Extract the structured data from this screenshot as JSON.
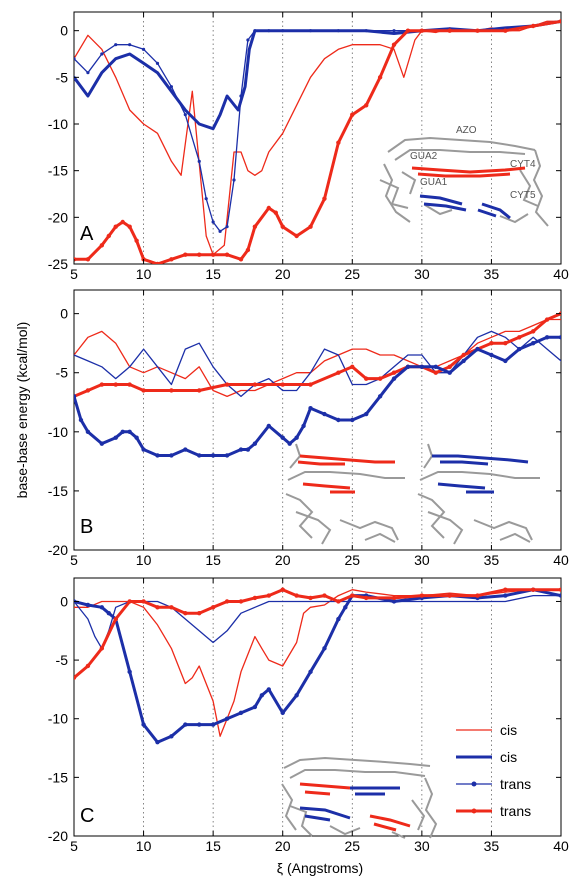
{
  "figure": {
    "ylabel": "base-base energy (kcal/mol)",
    "xlabel": "ξ (Angstroms)"
  },
  "colors": {
    "red": "#ee2a1a",
    "blue": "#1c2fa8",
    "grid": "#666666",
    "molecule": "#9a9a9a"
  },
  "chart_data": [
    {
      "type": "line",
      "panel_label": "A",
      "xlim": [
        5,
        40
      ],
      "ylim": [
        -25,
        2
      ],
      "xticks": [
        5,
        10,
        15,
        20,
        25,
        30,
        35,
        40
      ],
      "yticks": [
        0,
        -5,
        -10,
        -15,
        -20,
        -25
      ],
      "grid": "vertical dotted",
      "inset_labels": [
        "AZO",
        "GUA2",
        "CYT4",
        "GUA1",
        "CYT5"
      ],
      "series": [
        {
          "color": "red",
          "style": "thin",
          "x": [
            5,
            6,
            7,
            8,
            9,
            10,
            11,
            12,
            12.7,
            13.5,
            14.5,
            15,
            15.8,
            16.5,
            17,
            17.5,
            18,
            18.5,
            19,
            20,
            21,
            22,
            23,
            24,
            25,
            26,
            27,
            28,
            28.7,
            29.5,
            30,
            31,
            32,
            33,
            34,
            35,
            36,
            37,
            38,
            39,
            40
          ],
          "y": [
            -3,
            -0.5,
            -2,
            -5,
            -8.5,
            -10,
            -11,
            -14,
            -15.5,
            -6.5,
            -22,
            -24,
            -23,
            -13,
            -13,
            -15,
            -15.5,
            -15,
            -13,
            -11,
            -8,
            -5,
            -3,
            -2,
            -1.5,
            -1.5,
            -1.5,
            -2,
            -5,
            -1,
            0,
            -0.2,
            0.3,
            0,
            0,
            0.3,
            0,
            0,
            0.5,
            1,
            1
          ]
        },
        {
          "color": "blue",
          "style": "thick",
          "x": [
            5,
            6,
            7,
            8,
            9,
            10,
            11,
            12,
            13,
            14,
            15,
            15.5,
            16,
            16.8,
            17.3,
            17.6,
            18,
            19,
            20,
            22,
            24,
            26,
            28,
            30,
            32,
            34,
            36,
            38,
            40
          ],
          "y": [
            -5,
            -7,
            -4.5,
            -3,
            -2.5,
            -3.5,
            -4.5,
            -6.5,
            -8.5,
            -10,
            -10.5,
            -9,
            -7,
            -8.5,
            -6,
            -2,
            0,
            0,
            0,
            0,
            0,
            0,
            -0.3,
            0,
            0.2,
            0,
            0.3,
            0.5,
            1
          ]
        },
        {
          "color": "blue",
          "style": "thin-dotted",
          "x": [
            5,
            6,
            7,
            8,
            9,
            10,
            11,
            12,
            13,
            14,
            14.5,
            15,
            15.5,
            16,
            16.5,
            17,
            17.5,
            18,
            19,
            20,
            22,
            24,
            26,
            28,
            30,
            32,
            34,
            36,
            38,
            40
          ],
          "y": [
            -3,
            -4.5,
            -2.5,
            -1.5,
            -1.5,
            -2,
            -3.5,
            -6,
            -9,
            -14,
            -18,
            -20.5,
            -21.5,
            -21,
            -16,
            -7,
            -1,
            0,
            0,
            0,
            0,
            0,
            0,
            0,
            0,
            0,
            0,
            0,
            0.5,
            1
          ]
        },
        {
          "color": "red",
          "style": "thick-dotted",
          "x": [
            5,
            6,
            7,
            7.5,
            8,
            8.5,
            9,
            9.5,
            10,
            11,
            12,
            13,
            14,
            15,
            16,
            17,
            17.5,
            18,
            19,
            19.5,
            20,
            21,
            22,
            23,
            24,
            25,
            26,
            27,
            28,
            29,
            30,
            32,
            34,
            36,
            38,
            40
          ],
          "y": [
            -24.5,
            -24.5,
            -23,
            -22,
            -21,
            -20.5,
            -21,
            -22.5,
            -24.5,
            -25,
            -24.5,
            -24,
            -24,
            -24,
            -24,
            -24.5,
            -23.5,
            -21,
            -19,
            -19.5,
            -21,
            -22,
            -21,
            -18,
            -12,
            -9,
            -8,
            -5,
            -1.5,
            0,
            0,
            0,
            0,
            0,
            0.5,
            1
          ]
        }
      ]
    },
    {
      "type": "line",
      "panel_label": "B",
      "xlim": [
        5,
        40
      ],
      "ylim": [
        -20,
        2
      ],
      "xticks": [
        5,
        10,
        15,
        20,
        25,
        30,
        35,
        40
      ],
      "yticks": [
        0,
        -5,
        -10,
        -15,
        -20
      ],
      "grid": "vertical dotted",
      "series": [
        {
          "color": "red",
          "style": "thin",
          "x": [
            5,
            6,
            7,
            8,
            9,
            10,
            11,
            12,
            13,
            14,
            15,
            16,
            17,
            18,
            19,
            20,
            21,
            22,
            23,
            24,
            25,
            26,
            27,
            28,
            29,
            30,
            31,
            32,
            33,
            34,
            35,
            36,
            37,
            38,
            39,
            40
          ],
          "y": [
            -3.5,
            -2,
            -1.5,
            -2.5,
            -4.5,
            -5,
            -4.5,
            -5,
            -5.5,
            -4.5,
            -6.5,
            -7,
            -6.5,
            -6.5,
            -6,
            -5.5,
            -5,
            -5,
            -4,
            -3.5,
            -3,
            -3,
            -3.5,
            -3.5,
            -4,
            -4.5,
            -4.5,
            -4,
            -3.5,
            -2.5,
            -2,
            -1.5,
            -1.5,
            -1,
            -0.5,
            -0.5
          ]
        },
        {
          "color": "blue",
          "style": "thin",
          "x": [
            5,
            6,
            7,
            8,
            9,
            10,
            11,
            12,
            13,
            14,
            15,
            16,
            17,
            18,
            19,
            20,
            21,
            22,
            23,
            24,
            25,
            26,
            27,
            28,
            29,
            30,
            31,
            32,
            33,
            34,
            35,
            36,
            37,
            38,
            39,
            40
          ],
          "y": [
            -3.5,
            -4,
            -4.5,
            -5.5,
            -4.5,
            -3,
            -4.5,
            -6,
            -3,
            -2.5,
            -4.5,
            -6,
            -7,
            -6,
            -5.5,
            -6.5,
            -6.5,
            -5,
            -3,
            -3.5,
            -6,
            -6,
            -5.5,
            -4.5,
            -3.5,
            -3.5,
            -5,
            -5,
            -3.5,
            -2,
            -1.5,
            -2,
            -3,
            -2,
            -3,
            -4
          ]
        },
        {
          "color": "red",
          "style": "thick-dotted",
          "x": [
            5,
            6,
            7,
            8,
            9,
            10,
            12,
            14,
            16,
            18,
            20,
            22,
            24,
            25,
            26,
            27,
            28,
            29,
            30,
            31,
            32,
            33,
            34,
            35,
            36,
            37,
            38,
            39,
            40
          ],
          "y": [
            -7,
            -6.5,
            -6,
            -6,
            -6,
            -6.5,
            -6.5,
            -6.5,
            -6,
            -6,
            -6,
            -6,
            -5,
            -4.5,
            -5.5,
            -5.5,
            -5,
            -4.5,
            -4.5,
            -5,
            -4.5,
            -3.5,
            -3,
            -2.5,
            -2.5,
            -2,
            -1.5,
            -0.5,
            0
          ]
        },
        {
          "color": "blue",
          "style": "thick-dotted",
          "x": [
            5,
            5.5,
            6,
            7,
            8,
            8.5,
            9,
            9.5,
            10,
            11,
            12,
            13,
            14,
            15,
            16,
            17,
            17.5,
            18,
            19,
            20,
            20.5,
            21,
            21.5,
            22,
            23,
            24,
            25,
            26,
            27,
            28,
            29,
            30,
            31,
            32,
            33,
            34,
            35,
            36,
            37,
            38,
            39,
            40
          ],
          "y": [
            -7,
            -9,
            -10,
            -11,
            -10.5,
            -10,
            -10,
            -10.5,
            -11.5,
            -12,
            -12,
            -11.5,
            -12,
            -12,
            -12,
            -11.5,
            -11.5,
            -11,
            -9.5,
            -10.5,
            -11,
            -10.5,
            -9.5,
            -8,
            -8.5,
            -9,
            -9,
            -8.5,
            -7,
            -5.5,
            -4.5,
            -4.5,
            -4.5,
            -5,
            -4,
            -3,
            -3.5,
            -4,
            -3,
            -2.5,
            -2,
            -2
          ]
        }
      ]
    },
    {
      "type": "line",
      "panel_label": "C",
      "xlim": [
        5,
        40
      ],
      "ylim": [
        -20,
        2
      ],
      "xticks": [
        5,
        10,
        15,
        20,
        25,
        30,
        35,
        40
      ],
      "yticks": [
        0,
        -5,
        -10,
        -15,
        -20
      ],
      "grid": "vertical dotted",
      "legend_position": "lower-right",
      "legend": [
        {
          "label": "cis",
          "color": "red",
          "style": "thin"
        },
        {
          "label": "cis",
          "color": "blue",
          "style": "thick"
        },
        {
          "label": "trans",
          "color": "blue",
          "style": "thin-dotted"
        },
        {
          "label": "trans",
          "color": "red",
          "style": "thick-dotted"
        }
      ],
      "series": [
        {
          "color": "red",
          "style": "thin",
          "x": [
            5,
            6,
            7,
            8,
            9,
            10,
            11,
            12,
            13,
            13.5,
            14,
            15,
            15.5,
            16,
            16.5,
            17,
            18,
            18.5,
            19,
            20,
            21,
            21.5,
            22,
            23,
            24,
            25,
            26,
            28,
            30,
            32,
            34,
            36,
            38,
            40
          ],
          "y": [
            -0.5,
            -0.5,
            0,
            0,
            0,
            -0.5,
            -2,
            -4,
            -7,
            -6.5,
            -5.5,
            -8.5,
            -11.5,
            -10,
            -8.5,
            -6,
            -3,
            -4,
            -5,
            -5.5,
            -3.5,
            -1,
            -0.5,
            -0.3,
            0.5,
            1,
            0.8,
            0.5,
            0.5,
            0.7,
            0.5,
            0.8,
            1,
            1
          ]
        },
        {
          "color": "blue",
          "style": "thick-dotted",
          "x": [
            5,
            6,
            7,
            7.5,
            8,
            9,
            10,
            11,
            12,
            13,
            14,
            15,
            16,
            17,
            18,
            18.5,
            19,
            20,
            21,
            22,
            23,
            24,
            24.5,
            25,
            26,
            28,
            30,
            32,
            34,
            36,
            38,
            40
          ],
          "y": [
            0,
            -0.3,
            -0.5,
            -1,
            -1.5,
            -6,
            -10.5,
            -12,
            -11.5,
            -10.5,
            -10.5,
            -10.5,
            -10,
            -9.5,
            -9,
            -8,
            -7.5,
            -9.5,
            -8,
            -6,
            -4,
            -1.5,
            -0.5,
            0.5,
            0.5,
            0,
            0.3,
            0.5,
            0.3,
            0.5,
            1,
            0.5
          ]
        },
        {
          "color": "blue",
          "style": "thin",
          "x": [
            5,
            6,
            6.5,
            7,
            7.5,
            8,
            9,
            10,
            11,
            12,
            13,
            14,
            15,
            16,
            17,
            18,
            19,
            20,
            22,
            24,
            26,
            28,
            30,
            32,
            34,
            36,
            38,
            40
          ],
          "y": [
            0,
            -1.5,
            -3,
            -4,
            -2.5,
            -0.5,
            0,
            0,
            0,
            -0.5,
            -1.5,
            -2.5,
            -3.5,
            -2.5,
            -1,
            -0.5,
            0,
            0,
            0,
            0,
            0,
            0,
            0,
            0,
            0,
            0,
            0.5,
            0.5
          ]
        },
        {
          "color": "red",
          "style": "thick-dotted",
          "x": [
            5,
            6,
            7,
            8,
            9,
            10,
            11,
            12,
            13,
            14,
            15,
            16,
            17,
            18,
            19,
            20,
            21,
            22,
            23,
            24,
            25,
            26,
            28,
            30,
            32,
            34,
            36,
            38,
            40
          ],
          "y": [
            -6.5,
            -5.5,
            -4,
            -1.5,
            0,
            0,
            -0.5,
            -0.5,
            -1,
            -1,
            -0.5,
            0,
            0,
            0.3,
            0.5,
            1,
            0.5,
            0.3,
            0.5,
            0,
            0.5,
            0.3,
            0.3,
            0.5,
            0.5,
            0.5,
            1,
            1,
            1
          ]
        }
      ]
    }
  ]
}
